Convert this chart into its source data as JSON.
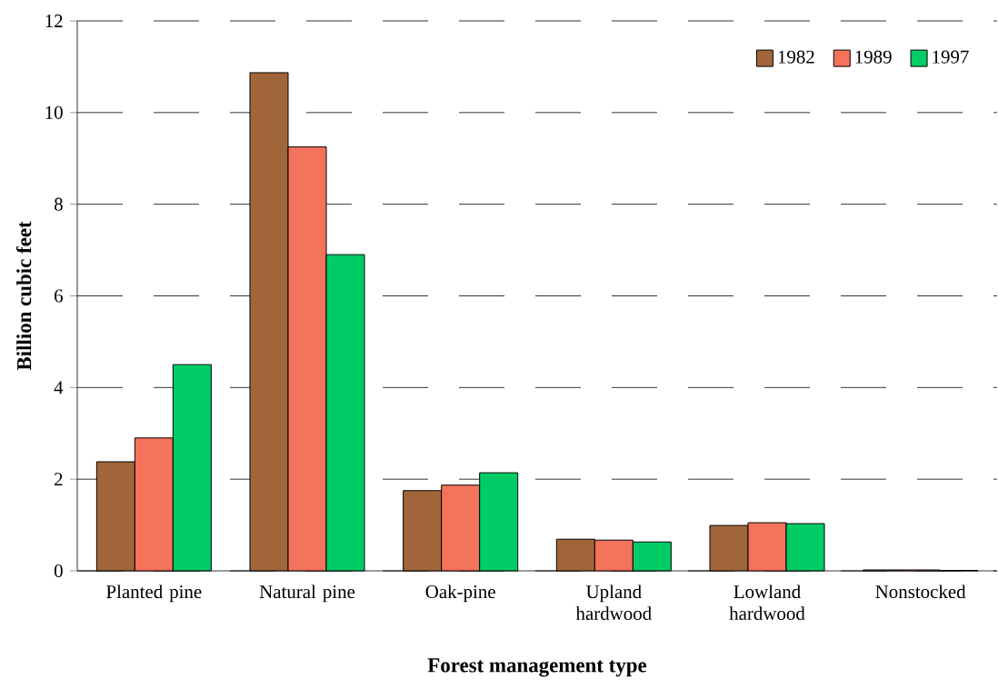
{
  "chart_data": {
    "type": "bar",
    "xlabel": "Forest management type",
    "ylabel": "Billion cubic feet",
    "categories": [
      "Planted pine",
      "Natural pine",
      "Oak-pine",
      "Upland hardwood",
      "Lowland hardwood",
      "Nonstocked"
    ],
    "series": [
      {
        "name": "1982",
        "color": "#a0663a",
        "values": [
          2.38,
          10.87,
          1.75,
          0.69,
          0.99,
          0.02
        ]
      },
      {
        "name": "1989",
        "color": "#f4735b",
        "values": [
          2.9,
          9.25,
          1.87,
          0.67,
          1.05,
          0.02
        ]
      },
      {
        "name": "1997",
        "color": "#00cc66",
        "values": [
          4.5,
          6.9,
          2.14,
          0.63,
          1.03,
          0.01
        ]
      }
    ],
    "ylim": [
      0,
      12
    ],
    "yticks": [
      0,
      2,
      4,
      6,
      8,
      10,
      12
    ],
    "grid": "y",
    "legend": "top right"
  }
}
